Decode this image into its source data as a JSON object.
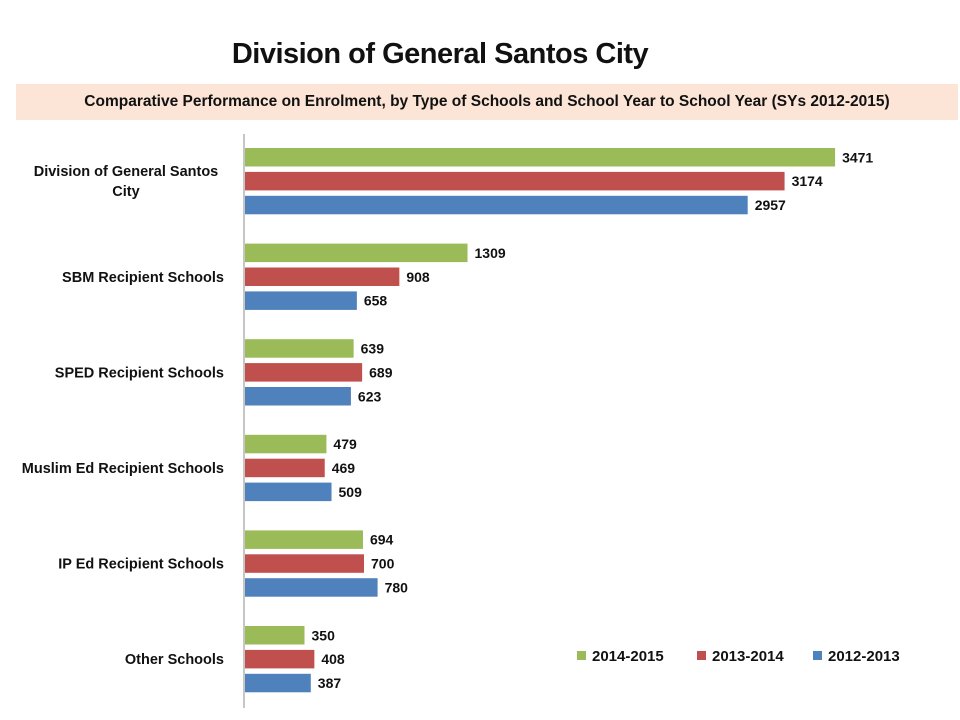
{
  "chart_data": {
    "type": "bar",
    "orientation": "horizontal",
    "title": "Division of General Santos City",
    "subtitle": "Comparative Performance on Enrolment, by Type of Schools and School Year to School Year (SYs 2012-2015)",
    "categories": [
      "Division of General Santos City",
      "SBM Recipient Schools",
      "SPED Recipient Schools",
      "Muslim Ed Recipient Schools",
      "IP Ed Recipient Schools",
      "Other Schools"
    ],
    "series": [
      {
        "name": "2014-2015",
        "color": "#9BBB59",
        "values": [
          3471,
          1309,
          639,
          479,
          694,
          350
        ]
      },
      {
        "name": "2013-2014",
        "color": "#C0504D",
        "values": [
          3174,
          908,
          689,
          469,
          700,
          408
        ]
      },
      {
        "name": "2012-2013",
        "color": "#4F81BD",
        "values": [
          2957,
          658,
          623,
          509,
          780,
          387
        ]
      }
    ],
    "xlim": [
      0,
      3600
    ],
    "grid": false,
    "data_labels": true,
    "legend_position": "bottom-right"
  }
}
